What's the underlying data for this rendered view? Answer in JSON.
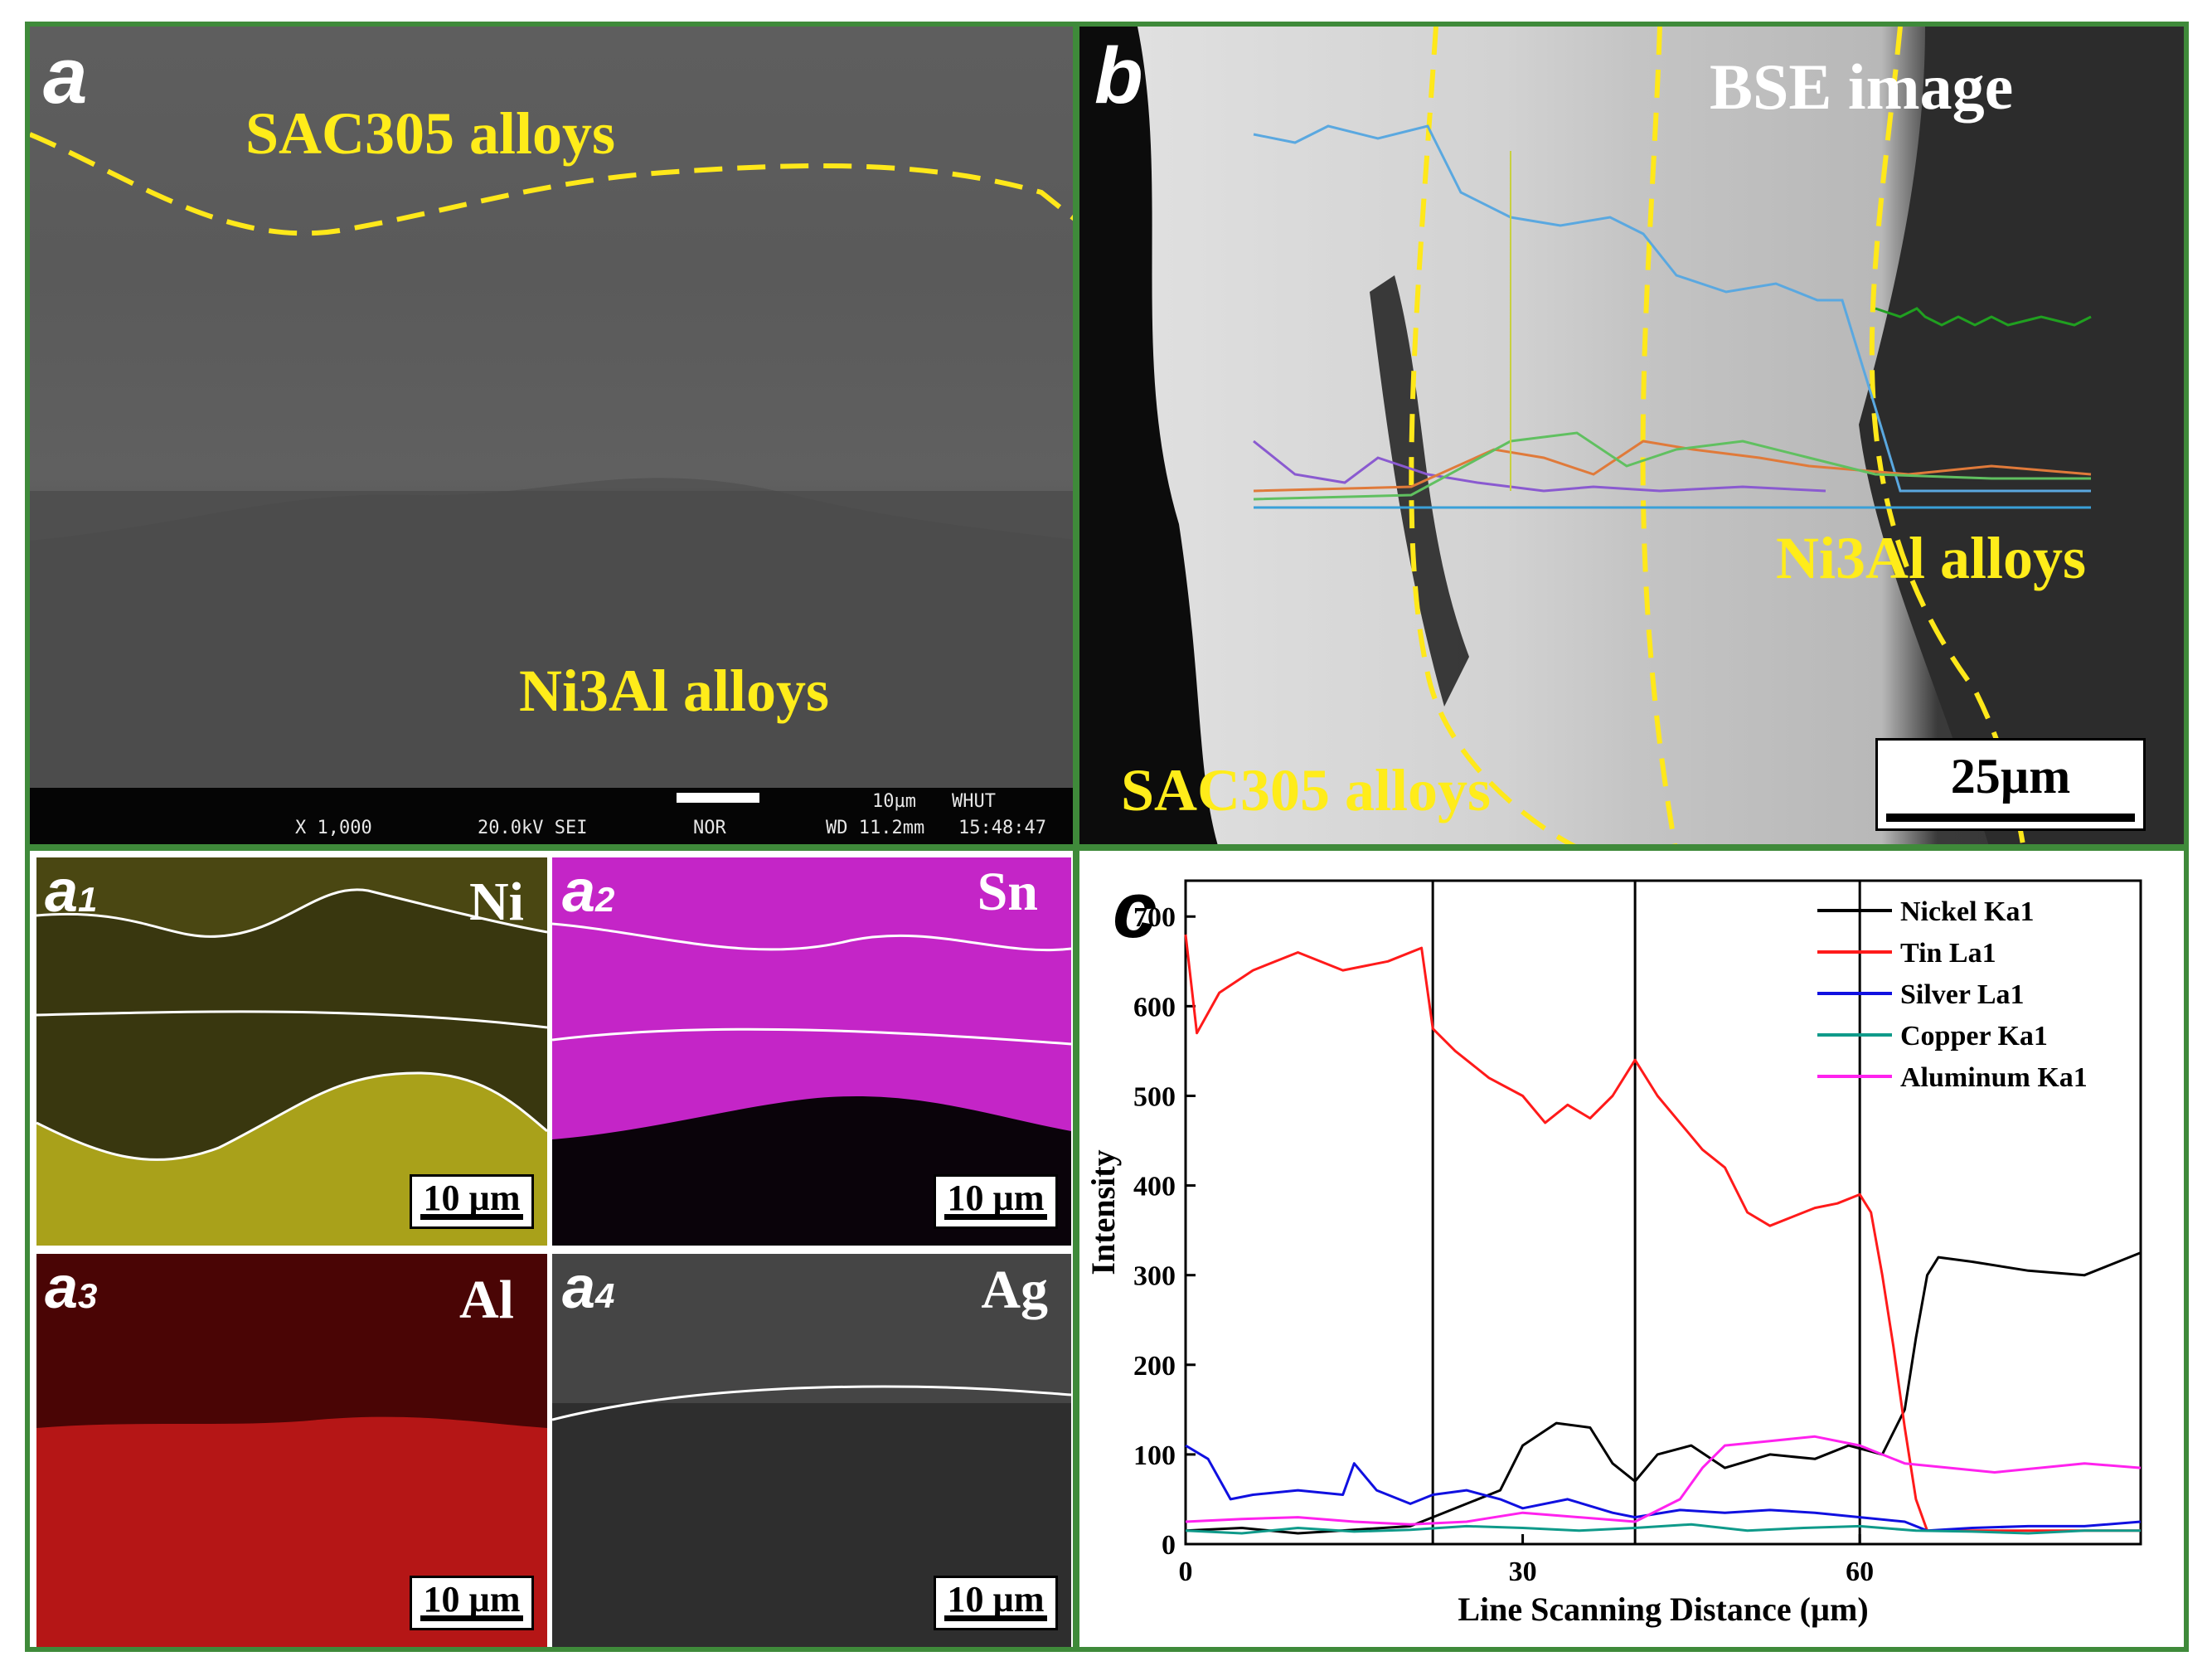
{
  "figure": {
    "panel_a": {
      "letter": "a",
      "top_label": "SAC305 alloys",
      "bottom_label": "Ni3Al alloys",
      "sem_bar": {
        "scale": "10µm",
        "lab": "WHUT",
        "magnification": "X 1,000",
        "voltage": "20.0kV SEI",
        "mode": "NOR",
        "wd": "WD 11.2mm",
        "time": "15:48:47"
      }
    },
    "panel_b": {
      "letter": "b",
      "title": "BSE image",
      "right_label": "Ni3Al alloys",
      "bottom_label": "SAC305 alloys",
      "scale": "25µm"
    },
    "maps": [
      {
        "letter": "a",
        "sub": "1",
        "element": "Ni",
        "scale": "10 µm",
        "color": "#d6cc1e"
      },
      {
        "letter": "a",
        "sub": "2",
        "element": "Sn",
        "scale": "10 µm",
        "color": "#d43bd6"
      },
      {
        "letter": "a",
        "sub": "3",
        "element": "Al",
        "scale": "10 µm",
        "color": "#c81818"
      },
      {
        "letter": "a",
        "sub": "4",
        "element": "Ag",
        "scale": "10 µm",
        "color": "#dcdcdc"
      }
    ],
    "panel_c": {
      "letter": "c"
    }
  },
  "chart_data": {
    "type": "line",
    "title": "",
    "xlabel": "Line Scanning Distance (µm)",
    "ylabel": "Intensity",
    "xlim": [
      0,
      85
    ],
    "ylim": [
      0,
      740
    ],
    "xticks": [
      0,
      30,
      60
    ],
    "yticks": [
      0,
      100,
      200,
      300,
      400,
      500,
      600,
      700
    ],
    "legend_position": "top-right",
    "vlines": [
      22,
      40,
      60
    ],
    "series": [
      {
        "name": "Nickel Ka1",
        "color": "#000000",
        "x": [
          0,
          5,
          10,
          15,
          20,
          22,
          25,
          28,
          30,
          33,
          36,
          38,
          40,
          42,
          45,
          48,
          52,
          56,
          59,
          62,
          64,
          65,
          66,
          67,
          70,
          75,
          80,
          85
        ],
        "y": [
          15,
          18,
          12,
          16,
          20,
          30,
          45,
          60,
          110,
          135,
          130,
          90,
          70,
          100,
          110,
          85,
          100,
          95,
          110,
          100,
          150,
          230,
          300,
          320,
          315,
          305,
          300,
          325
        ]
      },
      {
        "name": "Tin La1",
        "color": "#ff1a1a",
        "x": [
          0,
          1,
          3,
          6,
          10,
          14,
          18,
          21,
          22,
          24,
          27,
          30,
          32,
          34,
          36,
          38,
          40,
          42,
          44,
          46,
          48,
          50,
          52,
          54,
          56,
          58,
          60,
          61,
          62,
          63,
          64,
          65,
          66,
          70,
          75,
          80,
          85
        ],
        "y": [
          680,
          570,
          615,
          640,
          660,
          640,
          650,
          665,
          575,
          550,
          520,
          500,
          470,
          490,
          475,
          500,
          540,
          500,
          470,
          440,
          420,
          370,
          355,
          365,
          375,
          380,
          390,
          370,
          300,
          220,
          130,
          50,
          15,
          15,
          15,
          15,
          15
        ]
      },
      {
        "name": "Silver La1",
        "color": "#1010e0",
        "x": [
          0,
          2,
          4,
          6,
          10,
          14,
          15,
          17,
          20,
          22,
          25,
          28,
          30,
          34,
          38,
          40,
          44,
          48,
          52,
          56,
          60,
          64,
          66,
          70,
          75,
          80,
          85
        ],
        "y": [
          110,
          95,
          50,
          55,
          60,
          55,
          90,
          60,
          45,
          55,
          60,
          50,
          40,
          50,
          35,
          30,
          38,
          35,
          38,
          35,
          30,
          25,
          15,
          18,
          20,
          20,
          25
        ]
      },
      {
        "name": "Copper Ka1",
        "color": "#0f9a8a",
        "x": [
          0,
          5,
          10,
          15,
          20,
          25,
          30,
          35,
          40,
          45,
          50,
          55,
          60,
          65,
          70,
          75,
          80,
          85
        ],
        "y": [
          15,
          12,
          18,
          14,
          16,
          20,
          18,
          15,
          18,
          22,
          15,
          18,
          20,
          15,
          14,
          12,
          15,
          15
        ]
      },
      {
        "name": "Aluminum Ka1",
        "color": "#ff22ee",
        "x": [
          0,
          5,
          10,
          15,
          20,
          25,
          30,
          35,
          40,
          44,
          46,
          48,
          52,
          56,
          60,
          64,
          68,
          72,
          76,
          80,
          85
        ],
        "y": [
          25,
          28,
          30,
          25,
          22,
          25,
          35,
          30,
          25,
          50,
          85,
          110,
          115,
          120,
          110,
          90,
          85,
          80,
          85,
          90,
          85
        ]
      }
    ]
  }
}
